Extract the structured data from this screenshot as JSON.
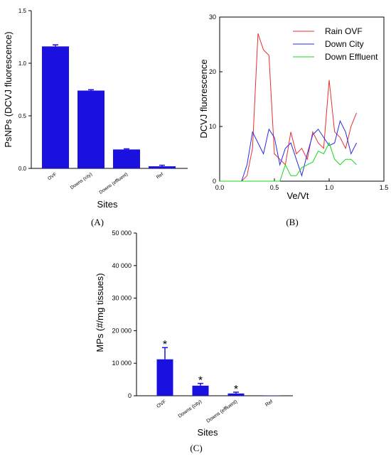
{
  "panel_labels": [
    "(A)",
    "(B)",
    "(C)"
  ],
  "chart_data": [
    {
      "type": "bar",
      "panel": "(A)",
      "title": "",
      "xlabel": "Sites",
      "ylabel": "PsNPs (DCVJ fluorescence)",
      "categories": [
        "OVF",
        "Downs (city)",
        "Downs (effluent)",
        "Ref"
      ],
      "values": [
        1.16,
        0.74,
        0.18,
        0.02
      ],
      "errors": [
        0.015,
        0.008,
        0.006,
        0.01
      ],
      "ylim": [
        0,
        1.5
      ],
      "yticks": [
        0.0,
        0.5,
        1.0,
        1.5
      ],
      "ytick_labels": [
        "0.0",
        "0.5",
        "1.0",
        "1.5"
      ],
      "bar_color": "#1a10e0",
      "grid": false
    },
    {
      "type": "line",
      "panel": "(B)",
      "title": "",
      "xlabel": "Ve/Vt",
      "ylabel": "DCVJ fluorescence",
      "xlim": [
        0,
        1.5
      ],
      "ylim": [
        0,
        30
      ],
      "xticks": [
        0.0,
        0.5,
        1.0,
        1.5
      ],
      "xtick_labels": [
        "0.0",
        "0.5",
        "1.0",
        "1.5"
      ],
      "yticks": [
        0,
        10,
        20,
        30
      ],
      "ytick_labels": [
        "0",
        "10",
        "20",
        "30"
      ],
      "legend_position": "top-right",
      "grid": false,
      "series": [
        {
          "name": "Rain OVF",
          "color": "#e8302e",
          "x": [
            0.0,
            0.1,
            0.2,
            0.25,
            0.3,
            0.35,
            0.4,
            0.45,
            0.5,
            0.55,
            0.6,
            0.65,
            0.7,
            0.75,
            0.8,
            0.85,
            0.9,
            0.95,
            1.0,
            1.05,
            1.1,
            1.15,
            1.2,
            1.25
          ],
          "y": [
            0,
            0,
            0,
            1,
            6,
            27,
            24,
            23,
            5,
            4,
            3,
            9,
            5,
            6,
            4,
            9,
            7,
            6,
            18.5,
            9,
            8,
            6,
            10,
            12.5
          ]
        },
        {
          "name": "Down City",
          "color": "#2a2ae8",
          "x": [
            0.0,
            0.1,
            0.2,
            0.25,
            0.3,
            0.35,
            0.4,
            0.45,
            0.5,
            0.55,
            0.6,
            0.65,
            0.7,
            0.75,
            0.8,
            0.85,
            0.9,
            0.95,
            1.0,
            1.05,
            1.1,
            1.15,
            1.2,
            1.25
          ],
          "y": [
            0,
            0,
            0,
            3,
            9,
            7,
            5,
            9.5,
            8,
            3,
            6,
            7,
            4,
            1,
            5,
            8.5,
            9.5,
            8,
            6.5,
            7,
            11,
            9,
            5,
            7
          ]
        },
        {
          "name": "Down Effluent",
          "color": "#16d816",
          "x": [
            0.0,
            0.1,
            0.2,
            0.25,
            0.3,
            0.35,
            0.4,
            0.45,
            0.5,
            0.55,
            0.6,
            0.65,
            0.7,
            0.75,
            0.8,
            0.85,
            0.9,
            0.95,
            1.0,
            1.05,
            1.1,
            1.15,
            1.2,
            1.25
          ],
          "y": [
            0,
            0,
            0,
            0,
            0,
            0,
            0,
            0,
            0,
            0,
            3,
            1,
            1,
            2.5,
            3,
            3.5,
            5.5,
            5,
            7,
            4,
            3,
            4,
            4,
            3
          ]
        }
      ]
    },
    {
      "type": "bar",
      "panel": "(C)",
      "title": "",
      "xlabel": "Sites",
      "ylabel": "MPs (#/mg tissues)",
      "categories": [
        "OVF",
        "Downs (city)",
        "Downs (effluent)",
        "Ref"
      ],
      "values": [
        11200,
        3100,
        700,
        100
      ],
      "errors": [
        3600,
        700,
        400,
        0
      ],
      "significance": [
        "*",
        "*",
        "*",
        ""
      ],
      "ylim": [
        0,
        50000
      ],
      "yticks": [
        0,
        10000,
        20000,
        30000,
        40000,
        50000
      ],
      "ytick_labels": [
        "0",
        "10 000",
        "20 000",
        "30 000",
        "40 000",
        "50 000"
      ],
      "bar_color": "#1a10e0",
      "grid": false
    }
  ]
}
